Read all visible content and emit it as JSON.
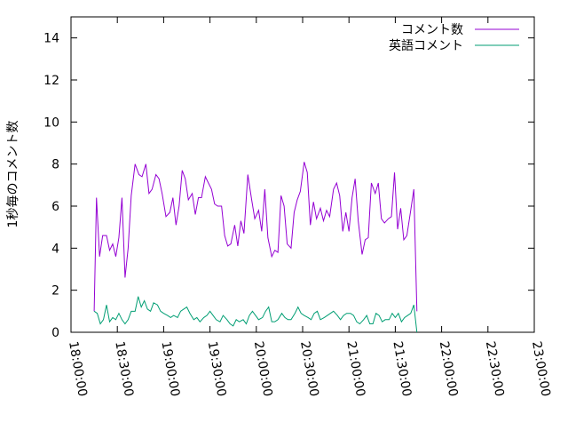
{
  "chart_data": {
    "type": "line",
    "title": "",
    "xlabel": "",
    "ylabel": "1秒毎のコメント数",
    "grid": false,
    "legend_position": "top-right",
    "xlim": [
      "18:00:00",
      "23:00:00"
    ],
    "ylim": [
      0,
      15
    ],
    "x_ticks": [
      "18:00:00",
      "18:30:00",
      "19:00:00",
      "19:30:00",
      "20:00:00",
      "20:30:00",
      "21:00:00",
      "21:30:00",
      "22:00:00",
      "22:30:00",
      "23:00:00"
    ],
    "y_ticks": [
      0,
      2,
      4,
      6,
      8,
      10,
      12,
      14
    ],
    "series": [
      {
        "name": "コメント数",
        "color": "#9400d3",
        "points": [
          [
            "18:15:00",
            1.0
          ],
          [
            "18:16:30",
            6.4
          ],
          [
            "18:18:30",
            3.6
          ],
          [
            "18:20:30",
            4.6
          ],
          [
            "18:23:00",
            4.6
          ],
          [
            "18:25:00",
            3.9
          ],
          [
            "18:27:00",
            4.2
          ],
          [
            "18:29:00",
            3.6
          ],
          [
            "18:31:00",
            4.5
          ],
          [
            "18:33:00",
            6.4
          ],
          [
            "18:35:00",
            2.6
          ],
          [
            "18:37:00",
            4.0
          ],
          [
            "18:39:00",
            6.5
          ],
          [
            "18:41:30",
            8.0
          ],
          [
            "18:44:00",
            7.5
          ],
          [
            "18:46:00",
            7.4
          ],
          [
            "18:48:30",
            8.0
          ],
          [
            "18:50:30",
            6.6
          ],
          [
            "18:52:30",
            6.8
          ],
          [
            "18:55:00",
            7.5
          ],
          [
            "18:57:00",
            7.3
          ],
          [
            "18:59:00",
            6.6
          ],
          [
            "19:01:30",
            5.5
          ],
          [
            "19:04:00",
            5.7
          ],
          [
            "19:06:00",
            6.4
          ],
          [
            "19:08:00",
            5.1
          ],
          [
            "19:10:00",
            6.0
          ],
          [
            "19:12:00",
            7.7
          ],
          [
            "19:14:00",
            7.3
          ],
          [
            "19:16:00",
            6.3
          ],
          [
            "19:18:30",
            6.6
          ],
          [
            "19:20:30",
            5.6
          ],
          [
            "19:22:30",
            6.4
          ],
          [
            "19:24:30",
            6.4
          ],
          [
            "19:27:00",
            7.4
          ],
          [
            "19:29:00",
            7.1
          ],
          [
            "19:31:00",
            6.8
          ],
          [
            "19:33:00",
            6.1
          ],
          [
            "19:35:00",
            6.0
          ],
          [
            "19:37:30",
            6.0
          ],
          [
            "19:39:30",
            4.6
          ],
          [
            "19:41:30",
            4.1
          ],
          [
            "19:43:30",
            4.2
          ],
          [
            "19:46:00",
            5.1
          ],
          [
            "19:48:00",
            4.1
          ],
          [
            "19:50:00",
            5.3
          ],
          [
            "19:52:00",
            4.7
          ],
          [
            "19:54:30",
            7.5
          ],
          [
            "19:57:00",
            6.3
          ],
          [
            "19:59:00",
            5.4
          ],
          [
            "20:01:30",
            5.8
          ],
          [
            "20:03:30",
            4.8
          ],
          [
            "20:05:30",
            6.8
          ],
          [
            "20:07:30",
            4.5
          ],
          [
            "20:10:00",
            3.6
          ],
          [
            "20:12:00",
            3.9
          ],
          [
            "20:14:00",
            3.8
          ],
          [
            "20:16:00",
            6.5
          ],
          [
            "20:18:00",
            6.0
          ],
          [
            "20:20:00",
            4.2
          ],
          [
            "20:22:30",
            4.0
          ],
          [
            "20:24:30",
            5.7
          ],
          [
            "20:26:30",
            6.3
          ],
          [
            "20:28:30",
            6.7
          ],
          [
            "20:31:00",
            8.1
          ],
          [
            "20:33:00",
            7.6
          ],
          [
            "20:35:00",
            5.1
          ],
          [
            "20:37:00",
            6.2
          ],
          [
            "20:39:00",
            5.4
          ],
          [
            "20:41:30",
            5.9
          ],
          [
            "20:43:30",
            5.3
          ],
          [
            "20:45:30",
            5.8
          ],
          [
            "20:47:30",
            5.5
          ],
          [
            "20:50:00",
            6.8
          ],
          [
            "20:52:00",
            7.1
          ],
          [
            "20:54:00",
            6.5
          ],
          [
            "20:56:00",
            4.8
          ],
          [
            "20:58:00",
            5.7
          ],
          [
            "21:00:00",
            4.8
          ],
          [
            "21:02:00",
            6.4
          ],
          [
            "21:04:00",
            7.3
          ],
          [
            "21:06:00",
            5.3
          ],
          [
            "21:08:30",
            3.7
          ],
          [
            "21:10:30",
            4.4
          ],
          [
            "21:12:30",
            4.5
          ],
          [
            "21:14:30",
            7.1
          ],
          [
            "21:17:00",
            6.6
          ],
          [
            "21:19:00",
            7.1
          ],
          [
            "21:21:00",
            5.4
          ],
          [
            "21:23:00",
            5.2
          ],
          [
            "21:25:30",
            5.4
          ],
          [
            "21:27:30",
            5.5
          ],
          [
            "21:29:30",
            7.6
          ],
          [
            "21:31:30",
            4.9
          ],
          [
            "21:33:30",
            5.9
          ],
          [
            "21:35:30",
            4.4
          ],
          [
            "21:37:30",
            4.6
          ],
          [
            "21:40:00",
            5.8
          ],
          [
            "21:42:00",
            6.8
          ],
          [
            "21:44:00",
            1.0
          ]
        ]
      },
      {
        "name": "英語コメント",
        "color": "#009e73",
        "points": [
          [
            "18:15:00",
            1.0
          ],
          [
            "18:17:00",
            0.9
          ],
          [
            "18:19:00",
            0.4
          ],
          [
            "18:21:00",
            0.6
          ],
          [
            "18:23:00",
            1.3
          ],
          [
            "18:25:00",
            0.5
          ],
          [
            "18:27:00",
            0.7
          ],
          [
            "18:29:00",
            0.6
          ],
          [
            "18:31:00",
            0.9
          ],
          [
            "18:33:00",
            0.6
          ],
          [
            "18:35:00",
            0.4
          ],
          [
            "18:37:00",
            0.6
          ],
          [
            "18:39:00",
            1.0
          ],
          [
            "18:41:30",
            1.0
          ],
          [
            "18:43:30",
            1.7
          ],
          [
            "18:45:30",
            1.2
          ],
          [
            "18:47:30",
            1.5
          ],
          [
            "18:49:30",
            1.1
          ],
          [
            "18:51:30",
            1.0
          ],
          [
            "18:53:30",
            1.4
          ],
          [
            "18:56:00",
            1.3
          ],
          [
            "18:58:00",
            1.0
          ],
          [
            "19:00:00",
            0.9
          ],
          [
            "19:02:30",
            0.8
          ],
          [
            "19:04:30",
            0.7
          ],
          [
            "19:06:30",
            0.8
          ],
          [
            "19:09:00",
            0.7
          ],
          [
            "19:11:00",
            1.0
          ],
          [
            "19:13:00",
            1.1
          ],
          [
            "19:15:00",
            1.2
          ],
          [
            "19:17:00",
            0.9
          ],
          [
            "19:19:30",
            0.6
          ],
          [
            "19:21:30",
            0.7
          ],
          [
            "19:23:30",
            0.5
          ],
          [
            "19:26:00",
            0.7
          ],
          [
            "19:28:00",
            0.8
          ],
          [
            "19:30:00",
            1.0
          ],
          [
            "19:32:00",
            0.8
          ],
          [
            "19:34:00",
            0.6
          ],
          [
            "19:36:30",
            0.5
          ],
          [
            "19:38:30",
            0.8
          ],
          [
            "19:41:00",
            0.6
          ],
          [
            "19:43:00",
            0.4
          ],
          [
            "19:45:00",
            0.3
          ],
          [
            "19:47:00",
            0.6
          ],
          [
            "19:49:00",
            0.5
          ],
          [
            "19:51:30",
            0.6
          ],
          [
            "19:53:30",
            0.4
          ],
          [
            "19:55:30",
            0.8
          ],
          [
            "19:57:30",
            1.0
          ],
          [
            "19:59:30",
            0.8
          ],
          [
            "20:01:30",
            0.6
          ],
          [
            "20:04:00",
            0.7
          ],
          [
            "20:06:00",
            1.0
          ],
          [
            "20:08:00",
            1.2
          ],
          [
            "20:10:00",
            0.5
          ],
          [
            "20:12:00",
            0.5
          ],
          [
            "20:14:00",
            0.6
          ],
          [
            "20:16:30",
            0.9
          ],
          [
            "20:18:30",
            0.7
          ],
          [
            "20:20:30",
            0.6
          ],
          [
            "20:22:30",
            0.6
          ],
          [
            "20:25:00",
            0.9
          ],
          [
            "20:27:00",
            1.2
          ],
          [
            "20:29:00",
            0.9
          ],
          [
            "20:31:00",
            0.8
          ],
          [
            "20:33:30",
            0.7
          ],
          [
            "20:35:30",
            0.6
          ],
          [
            "20:37:30",
            0.9
          ],
          [
            "20:39:30",
            1.0
          ],
          [
            "20:41:30",
            0.6
          ],
          [
            "20:44:00",
            0.7
          ],
          [
            "20:46:00",
            0.8
          ],
          [
            "20:48:00",
            0.9
          ],
          [
            "20:50:00",
            1.0
          ],
          [
            "20:52:30",
            0.8
          ],
          [
            "20:54:30",
            0.6
          ],
          [
            "20:56:30",
            0.8
          ],
          [
            "20:58:30",
            0.9
          ],
          [
            "21:01:00",
            0.9
          ],
          [
            "21:03:00",
            0.8
          ],
          [
            "21:05:00",
            0.5
          ],
          [
            "21:07:00",
            0.4
          ],
          [
            "21:09:30",
            0.6
          ],
          [
            "21:11:30",
            0.8
          ],
          [
            "21:13:30",
            0.4
          ],
          [
            "21:15:30",
            0.4
          ],
          [
            "21:17:30",
            0.9
          ],
          [
            "21:19:30",
            0.8
          ],
          [
            "21:21:30",
            0.5
          ],
          [
            "21:23:30",
            0.6
          ],
          [
            "21:26:00",
            0.6
          ],
          [
            "21:28:00",
            0.9
          ],
          [
            "21:30:00",
            0.7
          ],
          [
            "21:32:00",
            0.9
          ],
          [
            "21:34:00",
            0.5
          ],
          [
            "21:36:00",
            0.7
          ],
          [
            "21:38:00",
            0.8
          ],
          [
            "21:40:00",
            0.9
          ],
          [
            "21:42:00",
            1.3
          ],
          [
            "21:44:00",
            0.0
          ]
        ]
      }
    ]
  }
}
